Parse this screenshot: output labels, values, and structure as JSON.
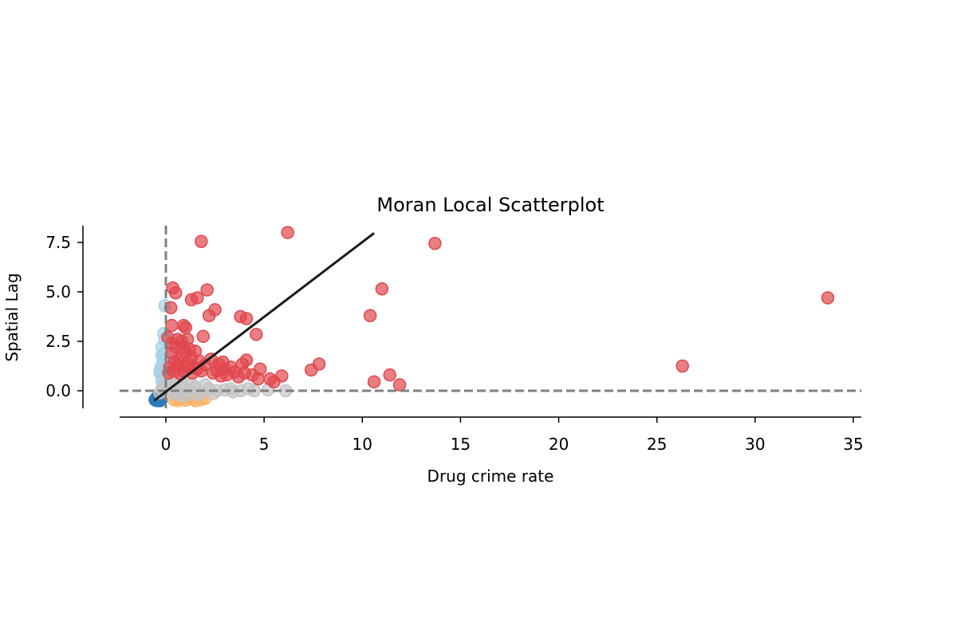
{
  "chart_data": {
    "type": "scatter",
    "title": "Moran Local Scatterplot",
    "xlabel": "Drug crime rate",
    "ylabel": "Spatial Lag",
    "xlim": [
      -2.3,
      35.3
    ],
    "ylim": [
      -0.9,
      8.5
    ],
    "xticks": [
      0,
      5,
      10,
      15,
      20,
      25,
      30,
      35
    ],
    "yticks": [
      0.0,
      2.5,
      5.0,
      7.5
    ],
    "xtick_labels": [
      "0",
      "5",
      "10",
      "15",
      "20",
      "25",
      "30",
      "35"
    ],
    "ytick_labels": [
      "0.0",
      "2.5",
      "5.0",
      "7.5"
    ],
    "grid": false,
    "reference_lines": {
      "x": 0,
      "y": 0,
      "style": "dashed",
      "color": "#808080"
    },
    "fit_line": {
      "x": [
        -0.6,
        10.6
      ],
      "y": [
        -0.5,
        7.97
      ],
      "color": "#1a1a1a"
    },
    "series": [
      {
        "quadrant": "HL",
        "color": "#a6d1e6",
        "points": [
          [
            -0.2,
            1.1
          ],
          [
            -0.1,
            1.4
          ],
          [
            -0.3,
            0.9
          ],
          [
            -0.1,
            1.9
          ],
          [
            -0.2,
            2.2
          ],
          [
            -0.05,
            2.6
          ],
          [
            -0.15,
            1.6
          ],
          [
            -0.25,
            1.2
          ],
          [
            -0.1,
            0.7
          ],
          [
            -0.2,
            0.5
          ],
          [
            -0.05,
            4.3
          ],
          [
            -0.1,
            2.9
          ],
          [
            -0.3,
            1.0
          ],
          [
            -0.15,
            0.3
          ],
          [
            -0.2,
            1.8
          ]
        ]
      },
      {
        "quadrant": "LL",
        "color": "#2b7bba",
        "points": [
          [
            -0.5,
            -0.45
          ],
          [
            -0.45,
            -0.5
          ],
          [
            -0.4,
            -0.48
          ],
          [
            -0.35,
            -0.42
          ],
          [
            -0.3,
            -0.5
          ],
          [
            -0.5,
            -0.38
          ],
          [
            -0.55,
            -0.46
          ],
          [
            -0.25,
            -0.47
          ]
        ]
      },
      {
        "quadrant": "LH",
        "color": "#fbb26a",
        "points": [
          [
            0.4,
            -0.45
          ],
          [
            0.6,
            -0.5
          ],
          [
            0.8,
            -0.4
          ],
          [
            1.0,
            -0.48
          ],
          [
            1.3,
            -0.42
          ],
          [
            1.5,
            -0.5
          ],
          [
            1.8,
            -0.45
          ],
          [
            2.0,
            -0.38
          ],
          [
            0.5,
            -0.3
          ],
          [
            1.1,
            -0.35
          ]
        ]
      },
      {
        "quadrant": "ns",
        "color": "#c4c4c4",
        "points": [
          [
            0.3,
            0.1
          ],
          [
            0.6,
            -0.05
          ],
          [
            0.9,
            0.15
          ],
          [
            1.2,
            0.0
          ],
          [
            1.5,
            0.2
          ],
          [
            1.8,
            -0.1
          ],
          [
            2.2,
            0.1
          ],
          [
            2.6,
            0.0
          ],
          [
            3.0,
            0.05
          ],
          [
            3.4,
            -0.05
          ],
          [
            3.8,
            0.0
          ],
          [
            4.2,
            0.1
          ],
          [
            4.5,
            0.0
          ],
          [
            5.2,
            0.05
          ],
          [
            6.1,
            0.0
          ],
          [
            0.2,
            0.6
          ],
          [
            0.5,
            0.4
          ],
          [
            0.1,
            0.3
          ],
          [
            -0.1,
            0.2
          ],
          [
            -0.2,
            0.1
          ],
          [
            0.7,
            -0.2
          ],
          [
            1.0,
            -0.25
          ],
          [
            1.6,
            -0.2
          ],
          [
            2.4,
            -0.15
          ],
          [
            3.3,
            0.1
          ],
          [
            2.0,
            0.3
          ],
          [
            1.3,
            0.35
          ],
          [
            0.8,
            0.45
          ],
          [
            -0.3,
            -0.1
          ],
          [
            0.4,
            -0.15
          ]
        ]
      },
      {
        "quadrant": "HH",
        "color": "#e0474d",
        "points": [
          [
            6.2,
            8.0
          ],
          [
            1.8,
            7.55
          ],
          [
            13.7,
            7.45
          ],
          [
            33.7,
            4.7
          ],
          [
            26.3,
            1.25
          ],
          [
            11.0,
            5.15
          ],
          [
            10.4,
            3.8
          ],
          [
            10.6,
            0.45
          ],
          [
            11.4,
            0.8
          ],
          [
            11.9,
            0.3
          ],
          [
            7.8,
            1.35
          ],
          [
            7.4,
            1.05
          ],
          [
            5.9,
            0.75
          ],
          [
            5.5,
            0.45
          ],
          [
            5.3,
            0.6
          ],
          [
            4.8,
            1.1
          ],
          [
            4.6,
            2.85
          ],
          [
            4.1,
            3.65
          ],
          [
            3.8,
            3.75
          ],
          [
            2.5,
            4.1
          ],
          [
            2.1,
            5.1
          ],
          [
            1.6,
            4.7
          ],
          [
            1.3,
            4.6
          ],
          [
            0.9,
            3.3
          ],
          [
            0.5,
            4.95
          ],
          [
            0.35,
            5.2
          ],
          [
            0.25,
            4.2
          ],
          [
            0.3,
            3.3
          ],
          [
            1.0,
            3.2
          ],
          [
            2.2,
            3.8
          ],
          [
            1.9,
            2.75
          ],
          [
            2.3,
            1.6
          ],
          [
            2.7,
            1.35
          ],
          [
            3.0,
            1.1
          ],
          [
            3.3,
            1.2
          ],
          [
            3.9,
            1.35
          ],
          [
            4.1,
            1.55
          ],
          [
            4.4,
            0.8
          ],
          [
            4.0,
            0.9
          ],
          [
            3.5,
            0.95
          ],
          [
            0.3,
            1.9
          ],
          [
            0.5,
            2.2
          ],
          [
            0.7,
            1.6
          ],
          [
            0.8,
            2.5
          ],
          [
            1.0,
            1.9
          ],
          [
            1.1,
            1.4
          ],
          [
            1.2,
            2.1
          ],
          [
            1.3,
            1.7
          ],
          [
            1.4,
            1.2
          ],
          [
            1.5,
            2.0
          ],
          [
            0.2,
            1.2
          ],
          [
            0.4,
            1.0
          ],
          [
            0.6,
            1.3
          ],
          [
            0.9,
            1.0
          ],
          [
            1.6,
            1.1
          ],
          [
            1.7,
            1.5
          ],
          [
            1.8,
            1.0
          ],
          [
            2.0,
            1.3
          ],
          [
            2.4,
            0.9
          ],
          [
            2.6,
            1.0
          ],
          [
            0.1,
            2.7
          ],
          [
            0.3,
            2.4
          ],
          [
            0.6,
            2.6
          ],
          [
            0.9,
            2.2
          ],
          [
            1.1,
            2.6
          ],
          [
            0.15,
            0.9
          ],
          [
            0.45,
            1.5
          ],
          [
            0.75,
            0.85
          ],
          [
            1.05,
            1.2
          ],
          [
            1.35,
            0.9
          ],
          [
            2.8,
            0.75
          ],
          [
            3.1,
            0.8
          ],
          [
            3.7,
            0.7
          ],
          [
            4.7,
            0.6
          ],
          [
            2.9,
            1.45
          ]
        ]
      }
    ]
  }
}
